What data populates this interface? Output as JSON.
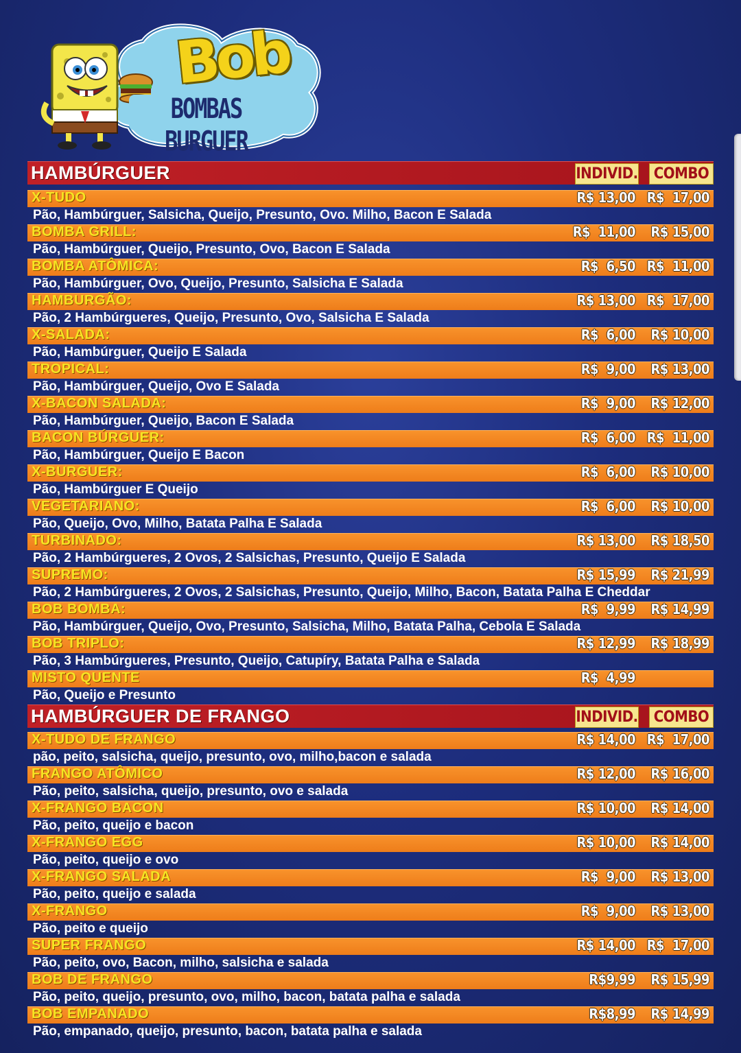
{
  "brand": {
    "name": "Bob",
    "subtitle": "BOMBAS BURGUER"
  },
  "sections": [
    {
      "title": "HAMBÚRGUER",
      "col_indiv": "INDIVID.",
      "col_combo": "COMBO",
      "items": [
        {
          "name": "X-TUDO",
          "indiv": "R$ 13,00",
          "combo": "R$  17,00",
          "desc": "Pão, Hambúrguer, Salsicha, Queijo, Presunto, Ovo. Milho, Bacon E Salada"
        },
        {
          "name": "BOMBA GRILL:",
          "indiv": "R$  11,00",
          "combo": "R$ 15,00",
          "desc": "Pão, Hambúrguer, Queijo, Presunto, Ovo, Bacon E Salada"
        },
        {
          "name": "BOMBA ATÔMICA:",
          "indiv": "R$  6,50",
          "combo": "R$  11,00",
          "desc": "Pão, Hambúrguer, Ovo, Queijo, Presunto, Salsicha E Salada"
        },
        {
          "name": "HAMBURGÃO:",
          "indiv": "R$ 13,00",
          "combo": "R$  17,00",
          "desc": "Pão, 2 Hambúrgueres, Queijo, Presunto, Ovo, Salsicha E Salada"
        },
        {
          "name": "X-SALADA:",
          "indiv": "R$  6,00",
          "combo": "R$ 10,00",
          "desc": " Pão, Hambúrguer, Queijo E Salada"
        },
        {
          "name": "TROPICAL:",
          "indiv": "R$  9,00",
          "combo": "R$ 13,00",
          "desc": "Pão, Hambúrguer, Queijo, Ovo E Salada"
        },
        {
          "name": "X-BACON SALADA:",
          "indiv": "R$  9,00",
          "combo": "R$ 12,00",
          "desc": "Pão, Hambúrguer, Queijo, Bacon E Salada"
        },
        {
          "name": "BACON BÚRGUER:",
          "indiv": "R$  6,00",
          "combo": "R$  11,00",
          "desc": "Pão, Hambúrguer, Queijo E Bacon"
        },
        {
          "name": "X-BURGUER:",
          "indiv": "R$  6,00",
          "combo": "R$ 10,00",
          "desc": "Pão, Hambúrguer E Queijo"
        },
        {
          "name": "VEGETARIANO:",
          "indiv": "R$  6,00",
          "combo": "R$ 10,00",
          "desc": "Pão, Queijo, Ovo, Milho, Batata Palha E Salada"
        },
        {
          "name": "TURBINADO:",
          "indiv": "R$ 13,00",
          "combo": "R$ 18,50",
          "desc": "Pão, 2 Hambúrgueres, 2 Ovos, 2 Salsichas, Presunto, Queijo E Salada"
        },
        {
          "name": "SUPREMO:",
          "indiv": "R$ 15,99",
          "combo": "R$ 21,99",
          "desc": "Pão, 2 Hambúrgueres, 2 Ovos, 2 Salsichas, Presunto, Queijo, Milho, Bacon, Batata Palha E Cheddar"
        },
        {
          "name": "BOB BOMBA:",
          "indiv": "R$  9,99",
          "combo": "R$ 14,99",
          "desc": "Pão, Hambúrguer, Queijo, Ovo, Presunto, Salsicha, Milho, Batata Palha, Cebola E Salada"
        },
        {
          "name": "BOB TRIPLO:",
          "indiv": "R$ 12,99",
          "combo": "R$ 18,99",
          "desc": "Pão, 3 Hambúrgueres, Presunto, Queijo, Catupíry, Batata Palha e Salada"
        },
        {
          "name": "MISTO QUENTE",
          "indiv": "R$  4,99",
          "combo": "",
          "desc": "Pão, Queijo e Presunto"
        }
      ]
    },
    {
      "title": "HAMBÚRGUER DE FRANGO",
      "col_indiv": "INDIVID.",
      "col_combo": "COMBO",
      "items": [
        {
          "name": "X-TUDO DE FRANGO",
          "indiv": "R$ 14,00",
          "combo": "R$  17,00",
          "desc": "pão, peito, salsicha, queijo, presunto, ovo, milho,bacon e salada"
        },
        {
          "name": "FRANGO ATÔMICO",
          "indiv": "R$ 12,00",
          "combo": "R$ 16,00",
          "desc": "Pão, peito, salsicha, queijo, presunto, ovo e salada"
        },
        {
          "name": "X-FRANGO BACON",
          "indiv": "R$ 10,00",
          "combo": "R$ 14,00",
          "desc": "Pão, peito, queijo e bacon"
        },
        {
          "name": "X-FRANGO EGG",
          "indiv": "R$ 10,00",
          "combo": "R$ 14,00",
          "desc": "Pão, peito, queijo e ovo"
        },
        {
          "name": "X-FRANGO SALADA",
          "indiv": "R$  9,00",
          "combo": "R$ 13,00",
          "desc": "Pão, peito, queijo e salada"
        },
        {
          "name": "X-FRANGO",
          "indiv": "R$  9,00",
          "combo": "R$ 13,00",
          "desc": "Pão, peito e queijo"
        },
        {
          "name": "SUPER FRANGO",
          "indiv": "R$ 14,00",
          "combo": "R$  17,00",
          "desc": "Pão, peito, ovo, Bacon, milho, salsicha e salada"
        },
        {
          "name": "BOB DE FRANGO",
          "indiv": "R$9,99",
          "combo": "R$ 15,99",
          "desc": "Pão, peito, queijo, presunto, ovo, milho, bacon, batata palha e salada"
        },
        {
          "name": "BOB EMPANADO",
          "indiv": "R$8,99",
          "combo": "R$ 14,99",
          "desc": "Pão, empanado, queijo, presunto, bacon, batata palha e salada"
        }
      ]
    }
  ],
  "colors": {
    "background": "#1d2d7d",
    "section_header": "#c02026",
    "item_bar": "#f8922b",
    "item_name": "#f6e422",
    "col_head_bg": "#f7e58e",
    "col_head_text": "#a10f18"
  }
}
